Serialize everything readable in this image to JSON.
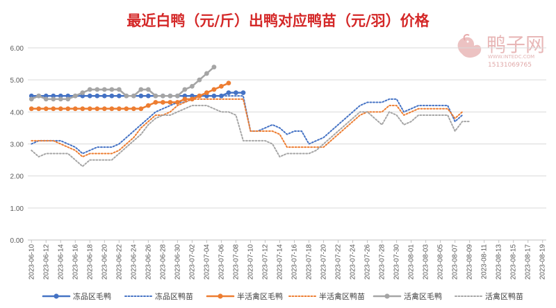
{
  "chart_data": {
    "type": "line",
    "title": "最近白鸭（元/斤）出鸭对应鸭苗（元/羽）价格",
    "ylim": [
      0,
      6
    ],
    "yticks": [
      "0.00",
      "1.00",
      "2.00",
      "3.00",
      "4.00",
      "5.00",
      "6.00"
    ],
    "x_tick_labels": [
      "2023-06-10",
      "2023-06-12",
      "2023-06-14",
      "2023-06-16",
      "2023-06-18",
      "2023-06-20",
      "2023-06-22",
      "2023-06-24",
      "2023-06-26",
      "2023-06-28",
      "2023-06-30",
      "2023-07-02",
      "2023-07-04",
      "2023-07-06",
      "2023-07-08",
      "2023-07-10",
      "2023-07-12",
      "2023-07-14",
      "2023-07-16",
      "2023-07-18",
      "2023-07-20",
      "2023-07-22",
      "2023-07-24",
      "2023-07-26",
      "2023-07-28",
      "2023-07-30",
      "2023-08-01",
      "2023-08-03",
      "2023-08-05",
      "2023-08-07",
      "2023-08-09",
      "2023-08-11",
      "2023-08-13",
      "2023-08-15",
      "2023-08-17",
      "2023-08-19"
    ],
    "x_start": "2023-06-10",
    "legend_position": "bottom",
    "series": [
      {
        "name": "冻品区毛鸭",
        "color": "#4472c4",
        "style": "solid",
        "start_index": 0,
        "values": [
          4.5,
          4.5,
          4.5,
          4.5,
          4.5,
          4.5,
          4.5,
          4.5,
          4.5,
          4.5,
          4.5,
          4.5,
          4.5,
          4.5,
          4.5,
          4.5,
          4.5,
          4.5,
          4.5,
          4.5,
          4.5,
          4.5,
          4.5,
          4.5,
          4.5,
          4.5,
          4.5,
          4.6,
          4.6,
          4.6
        ]
      },
      {
        "name": "冻品区鸭苗",
        "color": "#4472c4",
        "style": "dotted",
        "start_index": 0,
        "values": [
          3.0,
          3.1,
          3.1,
          3.1,
          3.1,
          3.0,
          2.9,
          2.7,
          2.8,
          2.9,
          2.9,
          2.9,
          3.0,
          3.2,
          3.4,
          3.6,
          3.8,
          4.0,
          4.1,
          4.2,
          4.3,
          4.3,
          4.4,
          4.5,
          4.5,
          4.5,
          4.5,
          4.5,
          4.5,
          4.5,
          3.4,
          3.4,
          3.5,
          3.6,
          3.5,
          3.3,
          3.4,
          3.4,
          3.0,
          3.1,
          3.2,
          3.4,
          3.6,
          3.8,
          4.0,
          4.2,
          4.3,
          4.3,
          4.3,
          4.4,
          4.4,
          4.0,
          4.1,
          4.2,
          4.2,
          4.2,
          4.2,
          4.2,
          3.7,
          3.9
        ]
      },
      {
        "name": "半活禽区毛鸭",
        "color": "#ed7d31",
        "style": "solid",
        "start_index": 0,
        "values": [
          4.1,
          4.1,
          4.1,
          4.1,
          4.1,
          4.1,
          4.1,
          4.1,
          4.1,
          4.1,
          4.1,
          4.1,
          4.1,
          4.1,
          4.1,
          4.1,
          4.2,
          4.3,
          4.3,
          4.3,
          4.3,
          4.4,
          4.4,
          4.5,
          4.6,
          4.7,
          4.8,
          4.9
        ]
      },
      {
        "name": "半活禽区鸭苗",
        "color": "#ed7d31",
        "style": "dotted",
        "start_index": 0,
        "values": [
          3.1,
          3.1,
          3.1,
          3.1,
          3.0,
          2.9,
          2.8,
          2.6,
          2.7,
          2.7,
          2.7,
          2.7,
          2.8,
          3.0,
          3.2,
          3.5,
          3.7,
          3.9,
          3.9,
          4.0,
          4.2,
          4.3,
          4.4,
          4.4,
          4.4,
          4.4,
          4.4,
          4.4,
          4.4,
          4.4,
          3.4,
          3.4,
          3.4,
          3.4,
          3.3,
          2.9,
          2.9,
          2.9,
          2.9,
          2.9,
          2.9,
          3.1,
          3.3,
          3.5,
          3.7,
          3.9,
          4.0,
          4.0,
          4.0,
          4.2,
          4.2,
          3.9,
          4.0,
          4.1,
          4.1,
          4.1,
          4.1,
          4.1,
          3.8,
          4.0
        ]
      },
      {
        "name": "活禽区毛鸭",
        "color": "#a5a5a5",
        "style": "solid",
        "start_index": 0,
        "values": [
          4.4,
          4.5,
          4.4,
          4.4,
          4.4,
          4.4,
          4.5,
          4.6,
          4.7,
          4.7,
          4.7,
          4.7,
          4.7,
          4.5,
          4.5,
          4.7,
          4.7,
          4.5,
          4.5,
          4.5,
          4.5,
          4.7,
          4.8,
          5.0,
          5.2,
          5.4
        ]
      },
      {
        "name": "活禽区鸭苗",
        "color": "#a5a5a5",
        "style": "dotted",
        "start_index": 0,
        "values": [
          2.8,
          2.6,
          2.7,
          2.7,
          2.7,
          2.7,
          2.5,
          2.3,
          2.5,
          2.5,
          2.5,
          2.5,
          2.7,
          2.9,
          3.1,
          3.3,
          3.6,
          3.8,
          3.9,
          3.9,
          4.0,
          4.1,
          4.2,
          4.2,
          4.2,
          4.1,
          4.0,
          4.0,
          3.9,
          3.1,
          3.1,
          3.1,
          3.1,
          3.0,
          2.6,
          2.7,
          2.7,
          2.7,
          2.7,
          2.8,
          3.0,
          3.2,
          3.4,
          3.6,
          3.8,
          4.0,
          4.0,
          3.8,
          3.6,
          4.0,
          3.9,
          3.6,
          3.7,
          3.9,
          3.9,
          3.9,
          3.9,
          3.9,
          3.4,
          3.7,
          3.7
        ]
      }
    ]
  },
  "watermark": {
    "brand": "鸭子网",
    "url": "WWW.INTEDC.COM",
    "phone": "15131069765"
  }
}
